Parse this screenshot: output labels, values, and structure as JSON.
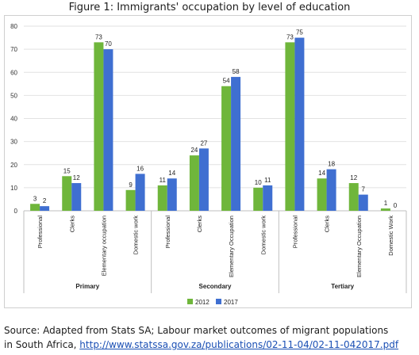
{
  "figure_title": "Figure 1: Immigrants' occupation by level of education",
  "source": {
    "line1": "Source: Adapted from Stats SA; Labour market outcomes of migrant populations",
    "line2_prefix": "in South Africa, ",
    "link": "http://www.statssa.gov.za/publications/02-11-04/02-11-042017.pdf"
  },
  "colors": {
    "2012": "#6fb63b",
    "2017": "#3f6fd1"
  },
  "chart_data": {
    "type": "bar",
    "title": "Figure 1: Immigrants' occupation by level of education",
    "xlabel": "",
    "ylabel": "",
    "ylim": [
      0,
      80
    ],
    "yticks": [
      0,
      10,
      20,
      30,
      40,
      50,
      60,
      70,
      80
    ],
    "grid": true,
    "legend": "bottom",
    "groups": [
      {
        "name": "Primary",
        "categories": [
          "Professional",
          "Clerks",
          "Elementary occupation",
          "Domestic work"
        ]
      },
      {
        "name": "Secondary",
        "categories": [
          "Professional",
          "Clerks",
          "Elementary Occupation",
          "Domestic work"
        ]
      },
      {
        "name": "Tertiary",
        "categories": [
          "Professional",
          "Clerks",
          "Elementary Occupation",
          "Domestic Work"
        ]
      }
    ],
    "series": [
      {
        "name": "2012",
        "values": [
          3,
          15,
          73,
          9,
          11,
          24,
          54,
          10,
          73,
          14,
          12,
          1
        ]
      },
      {
        "name": "2017",
        "values": [
          2,
          12,
          70,
          16,
          14,
          27,
          58,
          11,
          75,
          18,
          7,
          0
        ]
      }
    ]
  }
}
